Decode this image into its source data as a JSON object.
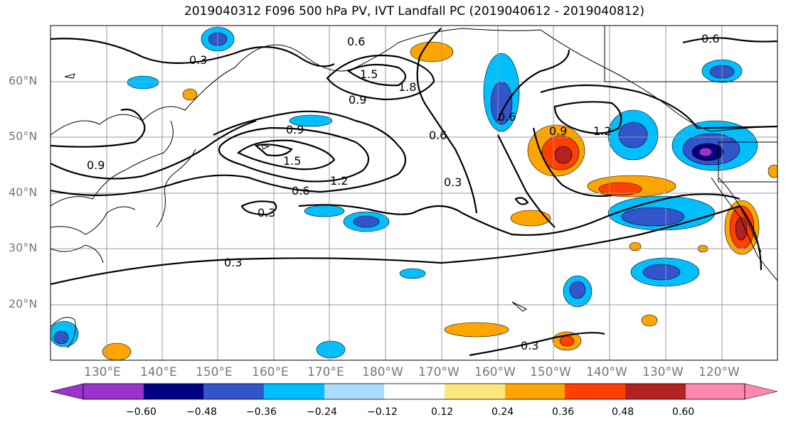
{
  "title": "2019040312 F096 500 hPa PV, IVT Landfall PC (2019040612 - 2019040812)",
  "lat_labels": [
    "60°N",
    "50°N",
    "40°N",
    "30°N",
    "20°N"
  ],
  "lon_labels": [
    "130°E",
    "140°E",
    "150°E",
    "160°E",
    "170°E",
    "180°W",
    "170°W",
    "160°W",
    "150°W",
    "140°W",
    "130°W",
    "120°W"
  ],
  "contour_labels": [
    "0.3",
    "0.6",
    "1.5",
    "0.9",
    "1.8",
    "0.6",
    "0.6",
    "0.9",
    "1.5",
    "1.2",
    "0.6",
    "0.3",
    "0.6",
    "0.3",
    "0.9",
    "0.9",
    "1.2",
    "0.3",
    "0.3"
  ],
  "colorbar": {
    "tick_labels": [
      "−0.60",
      "−0.48",
      "−0.36",
      "−0.24",
      "−0.12",
      "0.12",
      "0.24",
      "0.36",
      "0.48",
      "0.60"
    ],
    "colors": [
      "#9933cc",
      "#000080",
      "#3355cc",
      "#00bfff",
      "#aadcff",
      "#ffffff",
      "#ffe680",
      "#ffa500",
      "#ff4000",
      "#b22222",
      "#ff88b0"
    ]
  }
}
